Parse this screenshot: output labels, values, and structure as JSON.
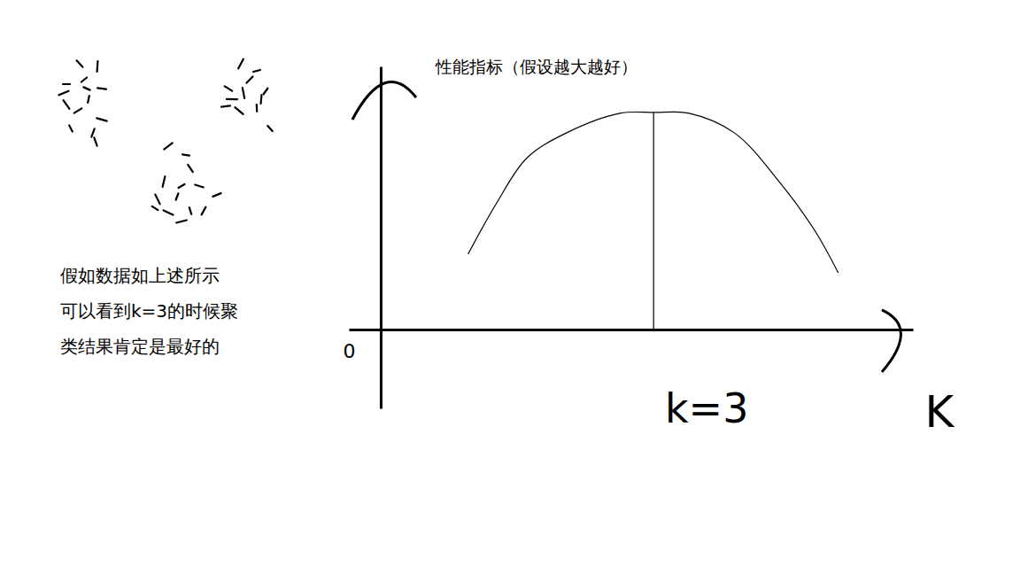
{
  "chart_data": [
    {
      "type": "scatter",
      "marker": "dash",
      "color": "#000000",
      "tick_labels": false,
      "xlim": [
        0,
        26
      ],
      "ylim": [
        0,
        20
      ],
      "x": [
        1.5,
        3,
        5,
        3.5,
        5.5,
        1.5,
        4,
        2.8,
        5.5,
        2,
        4.5,
        1.2,
        3.8,
        4.8,
        21.2,
        23,
        19.8,
        21.5,
        24,
        19.5,
        21,
        23,
        22.2,
        20.2,
        24.5,
        23.5,
        13,
        15,
        15.5,
        12.5,
        14.5,
        16.5,
        11.8,
        14,
        18.5,
        13,
        15.5,
        17,
        14.5,
        11.5
      ],
      "values": [
        16.5,
        18.8,
        18.5,
        17,
        16,
        14.2,
        14.8,
        13.5,
        12.5,
        11.5,
        11,
        15.5,
        16,
        10,
        18.8,
        18,
        16,
        15.5,
        15.7,
        14,
        13.5,
        13.8,
        17,
        14.8,
        11.5,
        14.8,
        9.5,
        8.5,
        7,
        5.5,
        5,
        5,
        3.5,
        3.8,
        4,
        2,
        2.2,
        2.2,
        1,
        2.5
      ],
      "caption": [
        "假如数据如上述所示",
        "可以看到k=3的时候聚",
        "类结果肯定是最好的"
      ]
    },
    {
      "type": "line",
      "color": "#000000",
      "ylabel": "性能指标（假设越大越好）",
      "xlabel": "K",
      "xlim": [
        -0.35,
        5.85
      ],
      "ylim": [
        -3,
        10
      ],
      "xticks": [
        0
      ],
      "yticks": [],
      "tick_labels": "x",
      "x": [
        0.96,
        1.27,
        1.61,
        2.04,
        2.63,
        3,
        3.39,
        3.89,
        4.38,
        4.77,
        5.03
      ],
      "series": [
        {
          "name": "性能指标",
          "values": [
            2.86,
            4.78,
            6.53,
            7.47,
            8.22,
            8.25,
            8.22,
            7.47,
            5.62,
            3.77,
            2.15
          ]
        }
      ],
      "annotations": [
        {
          "text": "k=3",
          "x": 3
        }
      ]
    }
  ]
}
